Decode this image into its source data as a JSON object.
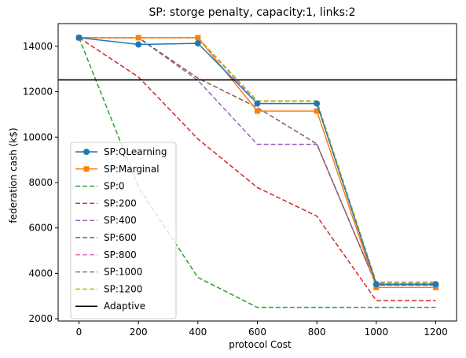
{
  "chart_data": {
    "type": "line",
    "title": "SP: storge penalty, capacity:1, links:2",
    "xlabel": "protocol Cost",
    "ylabel": "federation cash (k$)",
    "xlim": [
      -70,
      1270
    ],
    "ylim": [
      1900,
      15000
    ],
    "xticks": [
      0,
      200,
      400,
      600,
      800,
      1000,
      1200
    ],
    "yticks": [
      2000,
      4000,
      6000,
      8000,
      10000,
      12000,
      14000
    ],
    "x": [
      0,
      200,
      400,
      600,
      800,
      1000,
      1200
    ],
    "grid": false,
    "legend_position": "lower-left",
    "series": [
      {
        "name": "SP:QLearning",
        "values": [
          14380,
          14080,
          14130,
          11480,
          11480,
          3520,
          3520
        ],
        "color": "#1f77b4",
        "style": "solid",
        "marker": "circle"
      },
      {
        "name": "SP:Marginal",
        "values": [
          14380,
          14380,
          14380,
          11150,
          11150,
          3380,
          3380
        ],
        "color": "#ff7f0e",
        "style": "solid",
        "marker": "square"
      },
      {
        "name": "SP:0",
        "values": [
          14380,
          7800,
          3820,
          2500,
          2500,
          2500,
          2500
        ],
        "color": "#2ca02c",
        "style": "dashed",
        "marker": ""
      },
      {
        "name": "SP:200",
        "values": [
          14380,
          12650,
          9920,
          7780,
          6520,
          2800,
          2800
        ],
        "color": "#d62728",
        "style": "dashed",
        "marker": ""
      },
      {
        "name": "SP:400",
        "values": [
          14380,
          14380,
          12500,
          9680,
          9680,
          3500,
          3500
        ],
        "color": "#9467bd",
        "style": "dashed",
        "marker": ""
      },
      {
        "name": "SP:600",
        "values": [
          14380,
          14380,
          12600,
          11300,
          9700,
          3480,
          3480
        ],
        "color": "#8c564b",
        "style": "dashed",
        "marker": ""
      },
      {
        "name": "SP:800",
        "values": [
          14380,
          14380,
          14380,
          11480,
          11480,
          3540,
          3540
        ],
        "color": "#e377c2",
        "style": "dashed",
        "marker": ""
      },
      {
        "name": "SP:1000",
        "values": [
          14380,
          14380,
          14380,
          11580,
          11580,
          3600,
          3600
        ],
        "color": "#7f7f7f",
        "style": "dashed",
        "marker": ""
      },
      {
        "name": "SP:1200",
        "values": [
          14380,
          14380,
          14380,
          11600,
          11600,
          3620,
          3620
        ],
        "color": "#bcbd22",
        "style": "dashed",
        "marker": ""
      },
      {
        "name": "Adaptive",
        "values": [
          12520,
          12520,
          12520,
          12520,
          12520,
          12520,
          12520
        ],
        "color": "#000000",
        "style": "solid",
        "marker": "",
        "horizontal_line": true
      }
    ]
  }
}
